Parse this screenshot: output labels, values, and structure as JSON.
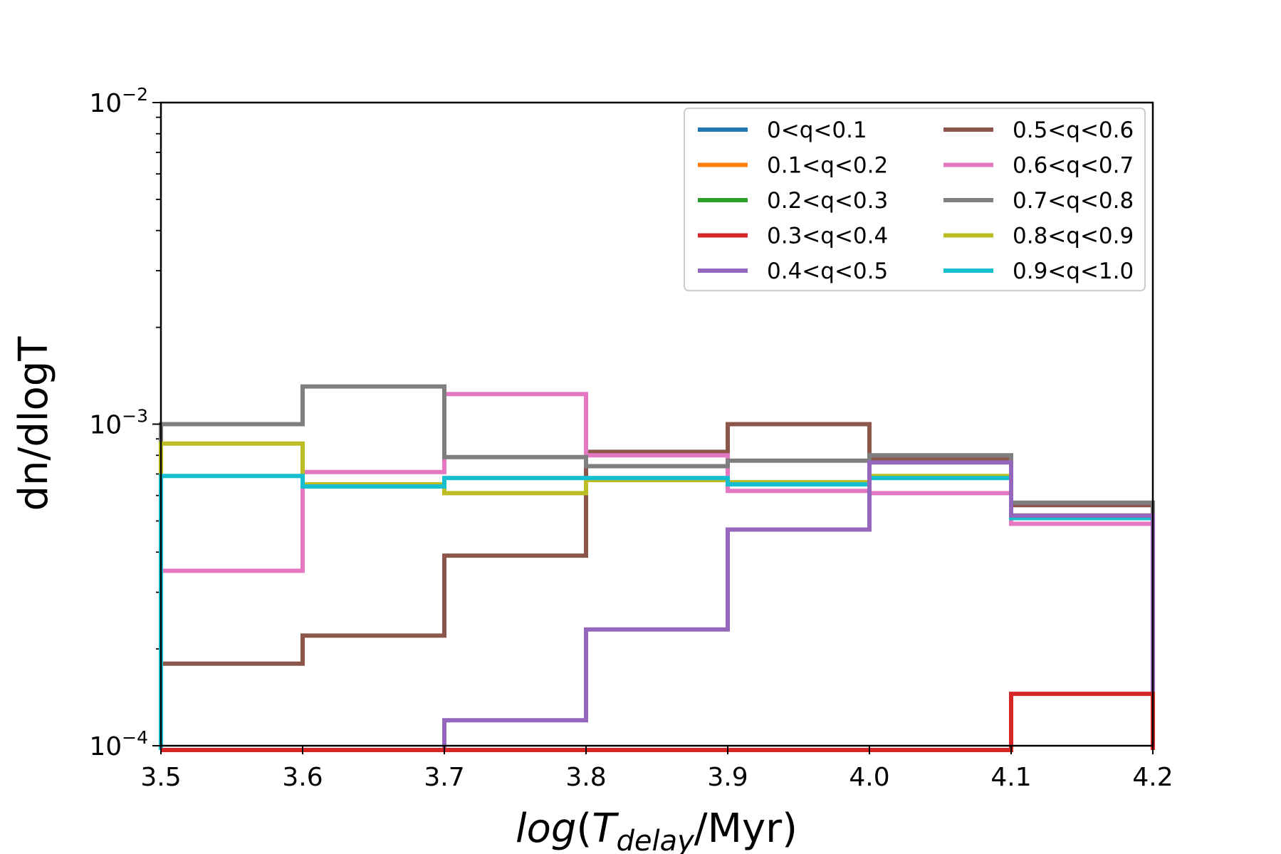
{
  "chart_data": {
    "type": "step",
    "title": "",
    "xlabel": {
      "italic": "log",
      "prefix": "(",
      "main": "T",
      "sub": "delay",
      "suffix": "/Myr)"
    },
    "ylabel": "dn/dlogT",
    "yscale": "log",
    "xlim": [
      3.5,
      4.2
    ],
    "ylim": [
      0.0001,
      0.01
    ],
    "x_ticks": [
      "3.5",
      "3.6",
      "3.7",
      "3.8",
      "3.9",
      "4.0",
      "4.1",
      "4.2"
    ],
    "y_ticks": [
      {
        "value": 0.0001,
        "base": "10",
        "exp": "−4"
      },
      {
        "value": 0.001,
        "base": "10",
        "exp": "−3"
      },
      {
        "value": 0.01,
        "base": "10",
        "exp": "−2"
      }
    ],
    "bin_edges": [
      3.5,
      3.6,
      3.7,
      3.8,
      3.9,
      4.0,
      4.1,
      4.2
    ],
    "legend_location": "upper-right",
    "series": [
      {
        "name": "0<q<0.1",
        "color": "#1f77b4",
        "values": [
          null,
          null,
          null,
          null,
          null,
          null,
          null
        ]
      },
      {
        "name": "0.1<q<0.2",
        "color": "#ff7f0e",
        "values": [
          null,
          null,
          null,
          null,
          null,
          null,
          null
        ]
      },
      {
        "name": "0.2<q<0.3",
        "color": "#2ca02c",
        "values": [
          null,
          null,
          null,
          null,
          null,
          null,
          null
        ]
      },
      {
        "name": "0.3<q<0.4",
        "color": "#d62728",
        "values": [
          null,
          null,
          null,
          null,
          null,
          null,
          0.000145
        ]
      },
      {
        "name": "0.4<q<0.5",
        "color": "#9467bd",
        "values": [
          null,
          null,
          0.00012,
          0.00023,
          0.00047,
          0.00076,
          0.00052
        ]
      },
      {
        "name": "0.5<q<0.6",
        "color": "#8c564b",
        "values": [
          0.00018,
          0.00022,
          0.00039,
          0.00082,
          0.001,
          0.00078,
          0.00056
        ]
      },
      {
        "name": "0.6<q<0.7",
        "color": "#e377c2",
        "values": [
          0.00035,
          0.00071,
          0.00124,
          0.0008,
          0.00062,
          0.00061,
          0.00049
        ]
      },
      {
        "name": "0.7<q<0.8",
        "color": "#7f7f7f",
        "values": [
          0.001,
          0.00131,
          0.00079,
          0.00074,
          0.00077,
          0.0008,
          0.00057
        ]
      },
      {
        "name": "0.8<q<0.9",
        "color": "#bcbd22",
        "values": [
          0.00087,
          0.00065,
          0.00061,
          0.00067,
          0.00066,
          0.00069,
          0.00052
        ]
      },
      {
        "name": "0.9<q<1.0",
        "color": "#17becf",
        "values": [
          0.00069,
          0.00064,
          0.00068,
          0.00068,
          0.00065,
          0.00068,
          0.00051
        ]
      }
    ]
  }
}
